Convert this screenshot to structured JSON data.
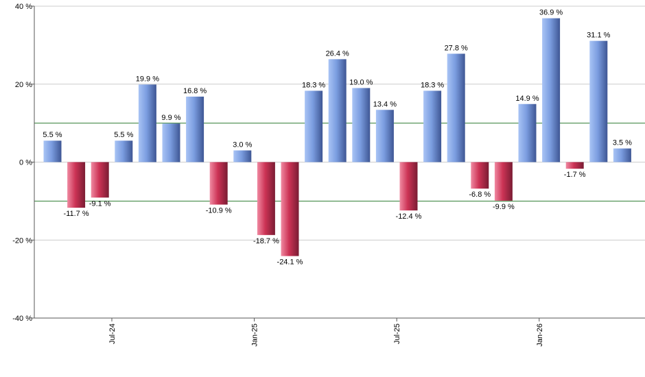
{
  "chart_data": {
    "type": "bar",
    "title": "",
    "xlabel": "",
    "ylabel": "",
    "ylim": [
      -40,
      40
    ],
    "y_ticks": [
      {
        "value": 40,
        "label": "40 %"
      },
      {
        "value": 20,
        "label": "20 %"
      },
      {
        "value": 0,
        "label": "0 %"
      },
      {
        "value": -20,
        "label": "-20 %"
      },
      {
        "value": -40,
        "label": "-40 %"
      }
    ],
    "x_ticks": [
      {
        "index": 2.5,
        "label": "Jul-24"
      },
      {
        "index": 8.5,
        "label": "Jan-25"
      },
      {
        "index": 14.5,
        "label": "Jul-25"
      },
      {
        "index": 20.5,
        "label": "Jan-26"
      }
    ],
    "values": [
      5.5,
      -11.7,
      -9.1,
      5.5,
      19.9,
      9.9,
      16.8,
      -10.9,
      3.0,
      -18.7,
      -24.1,
      18.3,
      26.4,
      19.0,
      13.4,
      -12.4,
      18.3,
      27.8,
      -6.8,
      -9.9,
      14.9,
      36.9,
      -1.7,
      31.1,
      3.5
    ],
    "value_labels": [
      "5.5 %",
      "-11.7 %",
      "-9.1 %",
      "5.5 %",
      "19.9 %",
      "9.9 %",
      "16.8 %",
      "-10.9 %",
      "3.0 %",
      "-18.7 %",
      "-24.1 %",
      "18.3 %",
      "26.4 %",
      "19.0 %",
      "13.4 %",
      "-12.4 %",
      "18.3 %",
      "27.8 %",
      "-6.8 %",
      "-9.9 %",
      "14.9 %",
      "36.9 %",
      "-1.7 %",
      "31.1 %",
      "3.5 %"
    ],
    "reference_lines": [
      10,
      -10
    ],
    "grid": true,
    "colors": {
      "positive": "#7b9de0",
      "negative": "#cc3355",
      "reference_line": "#2e7d32",
      "grid": "#cccccc",
      "axis": "#555555"
    }
  }
}
